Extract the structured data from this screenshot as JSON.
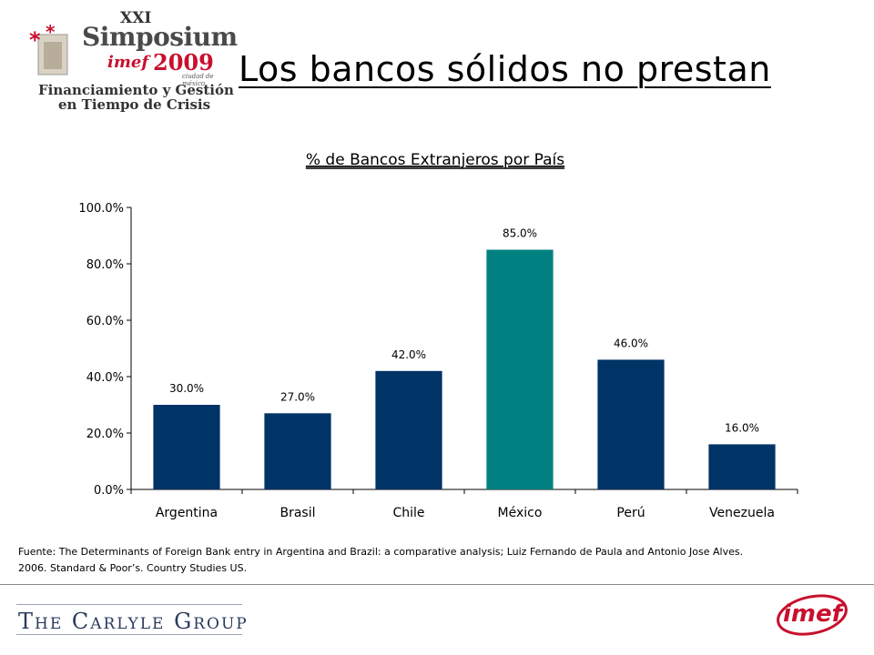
{
  "header": {
    "title": "Los bancos sólidos no prestan",
    "logo": {
      "edition": "XXI",
      "name": "Simposium",
      "org": "imef",
      "year": "2009",
      "city": "ciudad de méxico",
      "line1": "Financiamiento y Gestión",
      "line2": "en Tiempo de Crisis"
    }
  },
  "chart_data": {
    "type": "bar",
    "title": "% de Bancos Extranjeros por País",
    "categories": [
      "Argentina",
      "Brasil",
      "Chile",
      "México",
      "Perú",
      "Venezuela"
    ],
    "values": [
      30.0,
      27.0,
      42.0,
      85.0,
      46.0,
      16.0
    ],
    "value_labels": [
      "30.0%",
      "27.0%",
      "42.0%",
      "85.0%",
      "46.0%",
      "16.0%"
    ],
    "bar_colors": [
      "#003366",
      "#003366",
      "#003366",
      "#008080",
      "#003366",
      "#003366"
    ],
    "ylim": [
      0,
      100
    ],
    "yticks": [
      0,
      20,
      40,
      60,
      80,
      100
    ],
    "ytick_labels": [
      "0.0%",
      "20.0%",
      "40.0%",
      "60.0%",
      "80.0%",
      "100.0%"
    ],
    "grid": false,
    "legend": "none"
  },
  "source": {
    "line1": "Fuente: The Determinants  of Foreign Bank entry in Argentina and Brazil: a comparative analysis; Luiz Fernando de Paula and Antonio Jose Alves.",
    "line2": "2006. Standard & Poor’s. Country Studies US."
  },
  "footer": {
    "left_logo": "The Carlyle Group",
    "right_logo": "imef"
  }
}
